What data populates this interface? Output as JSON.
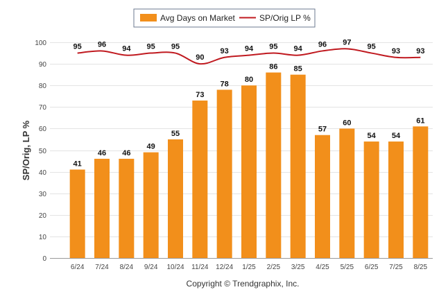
{
  "chart_data": {
    "type": "bar",
    "categories": [
      "6/24",
      "7/24",
      "8/24",
      "9/24",
      "10/24",
      "11/24",
      "12/24",
      "1/25",
      "2/25",
      "3/25",
      "4/25",
      "5/25",
      "6/25",
      "7/25",
      "8/25"
    ],
    "series": [
      {
        "name": "Avg Days on Market",
        "type": "bar",
        "color": "#f28f1b",
        "values": [
          41,
          46,
          46,
          49,
          55,
          73,
          78,
          80,
          86,
          85,
          57,
          60,
          54,
          54,
          61
        ]
      },
      {
        "name": "SP/Orig LP %",
        "type": "line",
        "color": "#c0191f",
        "values": [
          95,
          96,
          94,
          95,
          95,
          90,
          93,
          94,
          95,
          94,
          96,
          97,
          95,
          93,
          93
        ]
      }
    ],
    "ylabel": "SP/Orig, LP %",
    "ylim": [
      0,
      100
    ],
    "yticks": [
      0,
      10,
      20,
      30,
      40,
      50,
      60,
      70,
      80,
      90,
      100
    ],
    "grid": true,
    "legend_position": "top-center"
  },
  "footer": {
    "copyright": "Copyright © Trendgraphix, Inc."
  }
}
